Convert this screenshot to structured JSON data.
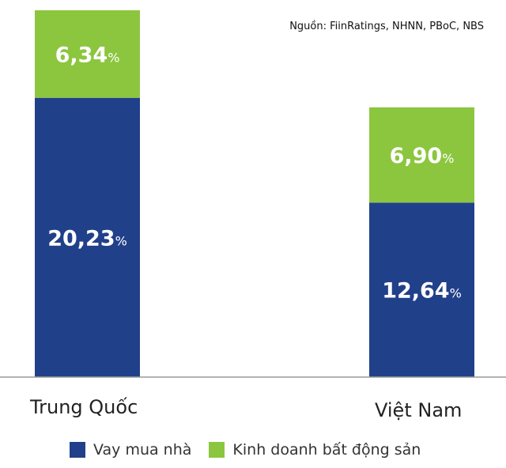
{
  "source_note": "Nguồn: FiinRatings, NHNN, PBoC, NBS",
  "chart_data": {
    "type": "bar",
    "stacked": true,
    "categories": [
      "Trung Quốc",
      "Việt Nam"
    ],
    "series": [
      {
        "name": "Vay mua nhà",
        "values": [
          20.23,
          12.64
        ],
        "labels": [
          "20,23",
          "12,64"
        ],
        "color": "#21408a"
      },
      {
        "name": "Kinh doanh bất động sản",
        "values": [
          6.34,
          6.9
        ],
        "labels": [
          "6,34",
          "6,90"
        ],
        "color": "#8cc63f"
      }
    ],
    "unit": "%",
    "ylim": [
      0,
      26.57
    ],
    "grid": false,
    "legend_position": "bottom"
  }
}
